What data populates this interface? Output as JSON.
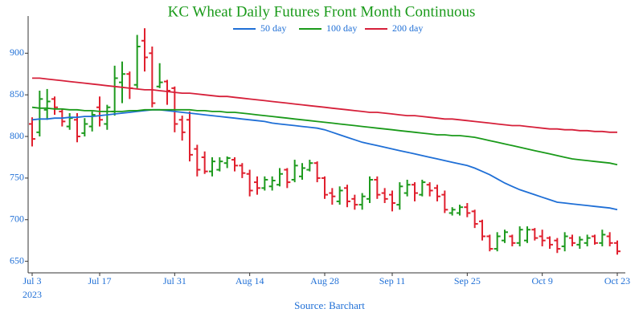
{
  "chart_data": {
    "type": "ohlc",
    "title": "KC Wheat Daily Futures Front Month Continuous",
    "source": "Source: Barchart",
    "year_label": "2023",
    "categories": [
      "Jul 3",
      null,
      null,
      null,
      null,
      null,
      null,
      null,
      null,
      "Jul 17",
      null,
      null,
      null,
      null,
      null,
      null,
      null,
      null,
      null,
      "Jul 31",
      null,
      null,
      null,
      null,
      null,
      null,
      null,
      null,
      null,
      "Aug 14",
      null,
      null,
      null,
      null,
      null,
      null,
      null,
      null,
      null,
      "Aug 28",
      null,
      null,
      null,
      null,
      null,
      null,
      null,
      null,
      "Sep 11",
      null,
      null,
      null,
      null,
      null,
      null,
      null,
      null,
      null,
      "Sep 25",
      null,
      null,
      null,
      null,
      null,
      null,
      null,
      null,
      null,
      "Oct 9",
      null,
      null,
      null,
      null,
      null,
      null,
      null,
      null,
      null,
      "Oct 23"
    ],
    "open": [
      815,
      805,
      832,
      845,
      830,
      812,
      820,
      804,
      812,
      835,
      815,
      830,
      865,
      875,
      862,
      915,
      900,
      860,
      866,
      858,
      820,
      820,
      785,
      775,
      758,
      760,
      768,
      772,
      765,
      755,
      745,
      738,
      740,
      742,
      760,
      748,
      752,
      760,
      768,
      750,
      732,
      722,
      738,
      725,
      718,
      725,
      748,
      732,
      730,
      718,
      732,
      742,
      730,
      742,
      738,
      730,
      708,
      708,
      715,
      710,
      698,
      680,
      665,
      675,
      680,
      672,
      675,
      688,
      680,
      678,
      675,
      668,
      678,
      670,
      672,
      680,
      672,
      680,
      672
    ],
    "high": [
      823,
      855,
      857,
      848,
      833,
      828,
      828,
      822,
      830,
      848,
      838,
      885,
      890,
      878,
      922,
      930,
      908,
      888,
      868,
      860,
      825,
      830,
      790,
      782,
      775,
      775,
      776,
      775,
      768,
      760,
      752,
      752,
      752,
      762,
      762,
      772,
      768,
      772,
      770,
      752,
      738,
      740,
      742,
      730,
      732,
      752,
      752,
      738,
      735,
      745,
      748,
      745,
      748,
      745,
      742,
      735,
      715,
      718,
      720,
      712,
      700,
      682,
      685,
      688,
      682,
      692,
      692,
      690,
      688,
      680,
      678,
      685,
      682,
      680,
      682,
      682,
      688,
      685,
      675
    ],
    "low": [
      788,
      800,
      820,
      826,
      812,
      808,
      793,
      800,
      806,
      812,
      808,
      825,
      840,
      845,
      858,
      878,
      835,
      858,
      838,
      805,
      795,
      770,
      752,
      755,
      752,
      758,
      762,
      758,
      750,
      728,
      730,
      735,
      735,
      740,
      738,
      745,
      748,
      758,
      745,
      725,
      718,
      718,
      715,
      712,
      712,
      720,
      725,
      720,
      710,
      712,
      728,
      722,
      728,
      728,
      722,
      708,
      705,
      705,
      703,
      690,
      675,
      662,
      662,
      672,
      668,
      668,
      672,
      675,
      668,
      665,
      660,
      662,
      668,
      665,
      668,
      670,
      668,
      668,
      658
    ],
    "close": [
      797,
      845,
      842,
      835,
      818,
      822,
      800,
      815,
      826,
      820,
      835,
      870,
      875,
      858,
      908,
      895,
      840,
      865,
      855,
      815,
      805,
      778,
      760,
      758,
      770,
      770,
      774,
      765,
      756,
      735,
      738,
      748,
      747,
      755,
      745,
      765,
      762,
      768,
      750,
      730,
      728,
      735,
      722,
      718,
      728,
      748,
      730,
      725,
      720,
      740,
      742,
      732,
      745,
      735,
      728,
      712,
      712,
      715,
      708,
      695,
      680,
      665,
      680,
      685,
      672,
      688,
      688,
      678,
      675,
      670,
      665,
      680,
      672,
      676,
      678,
      672,
      682,
      672,
      662
    ],
    "up_color": "#1e9a1e",
    "down_color": "#e0202e",
    "lines": [
      {
        "name": "50 day",
        "color": "#1f6fd6",
        "values": [
          820,
          821,
          821,
          822,
          822,
          823,
          823,
          824,
          824,
          825,
          826,
          827,
          828,
          829,
          830,
          831,
          832,
          832,
          831,
          830,
          829,
          828,
          827,
          826,
          825,
          824,
          823,
          822,
          821,
          820,
          819,
          818,
          816,
          815,
          814,
          813,
          812,
          811,
          810,
          808,
          805,
          802,
          799,
          796,
          793,
          791,
          789,
          787,
          785,
          783,
          781,
          779,
          777,
          775,
          773,
          771,
          769,
          767,
          765,
          762,
          758,
          754,
          749,
          744,
          740,
          736,
          733,
          730,
          727,
          724,
          721,
          720,
          719,
          718,
          717,
          716,
          715,
          714,
          712
        ]
      },
      {
        "name": "100 day",
        "color": "#1a9a1a",
        "values": [
          835,
          834,
          834,
          833,
          833,
          832,
          832,
          831,
          831,
          830,
          830,
          830,
          830,
          831,
          831,
          832,
          832,
          832,
          832,
          832,
          832,
          832,
          831,
          831,
          830,
          830,
          829,
          829,
          828,
          827,
          826,
          825,
          824,
          823,
          822,
          821,
          820,
          819,
          818,
          817,
          816,
          815,
          814,
          813,
          812,
          811,
          810,
          809,
          808,
          807,
          806,
          805,
          804,
          803,
          802,
          802,
          801,
          801,
          800,
          799,
          797,
          795,
          793,
          791,
          789,
          787,
          785,
          783,
          781,
          779,
          777,
          775,
          773,
          772,
          771,
          770,
          769,
          768,
          766
        ]
      },
      {
        "name": "200 day",
        "color": "#d6203a",
        "values": [
          870,
          870,
          869,
          868,
          867,
          866,
          865,
          864,
          863,
          862,
          861,
          860,
          859,
          858,
          857,
          856,
          856,
          855,
          854,
          853,
          852,
          852,
          851,
          850,
          849,
          848,
          848,
          847,
          846,
          845,
          844,
          843,
          842,
          841,
          840,
          839,
          838,
          837,
          836,
          835,
          834,
          833,
          832,
          831,
          830,
          829,
          829,
          828,
          827,
          826,
          825,
          825,
          824,
          823,
          822,
          821,
          821,
          820,
          819,
          818,
          817,
          816,
          815,
          814,
          813,
          813,
          812,
          811,
          810,
          809,
          809,
          808,
          808,
          807,
          807,
          806,
          806,
          805,
          805
        ]
      }
    ],
    "ylim": [
      640,
      935
    ],
    "yticks": [
      650,
      700,
      750,
      800,
      850,
      900
    ],
    "grid": false,
    "title_color": "#1a9a1a",
    "tick_color": "#1f6fd6"
  }
}
